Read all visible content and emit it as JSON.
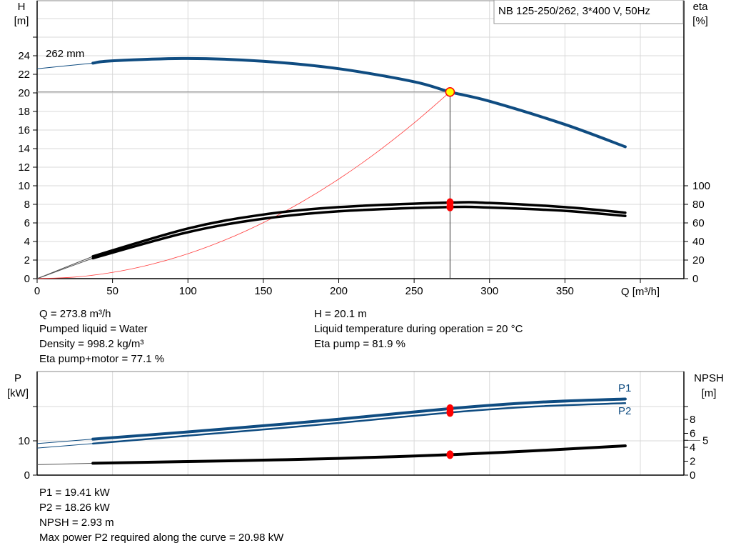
{
  "colors": {
    "pump_curve": "#0f4c81",
    "efficiency": "#000000",
    "system_curve": "#ff3b3b",
    "operating_point_fill": "#ffff00",
    "operating_point_stroke": "#ff0000",
    "marker": "#ff0000",
    "grid": "#d9d9d9"
  },
  "legend_box": "NB 125-250/262, 3*400 V, 50Hz",
  "chart_data": [
    {
      "type": "line",
      "title": "",
      "xlabel": "Q [m³/h]",
      "ylabel_left": [
        "H",
        "[m]"
      ],
      "ylabel_right": [
        "eta",
        "[%]"
      ],
      "xlim": [
        0,
        400
      ],
      "ylim_left": [
        0,
        30
      ],
      "ylim_right": [
        0,
        100
      ],
      "grid": true,
      "x_ticks": [
        "0",
        "50",
        "100",
        "150",
        "200",
        "250",
        "300",
        "350"
      ],
      "y_ticks_left": [
        "0",
        "2",
        "4",
        "6",
        "8",
        "10",
        "12",
        "14",
        "16",
        "18",
        "20",
        "22",
        "24"
      ],
      "y_ticks_right": [
        "0",
        "20",
        "40",
        "60",
        "80",
        "100"
      ],
      "curve_label": "262 mm",
      "series": [
        {
          "id": "head",
          "axis": "left",
          "x": [
            0,
            37,
            50,
            100,
            150,
            200,
            250,
            273.8,
            300,
            350,
            390
          ],
          "y": [
            22.6,
            23.2,
            23.45,
            23.7,
            23.4,
            22.6,
            21.2,
            20.1,
            19.1,
            16.6,
            14.2
          ]
        },
        {
          "id": "eta_pump",
          "axis": "right",
          "x": [
            0,
            37,
            100,
            150,
            200,
            273.8,
            300,
            350,
            390
          ],
          "y": [
            0,
            24,
            54,
            69,
            77,
            81.9,
            81.5,
            77,
            71
          ]
        },
        {
          "id": "eta_pump_motor",
          "axis": "right",
          "x": [
            0,
            37,
            100,
            150,
            200,
            273.8,
            300,
            350,
            390
          ],
          "y": [
            0,
            22,
            50,
            64.5,
            72.5,
            77.1,
            76.5,
            73,
            67.5
          ]
        },
        {
          "id": "system_curve",
          "axis": "left",
          "x": [
            0,
            25,
            50,
            75,
            100,
            125,
            150,
            175,
            200,
            225,
            250,
            273.8
          ],
          "y": [
            0,
            0.17,
            0.67,
            1.51,
            2.68,
            4.19,
            6.03,
            8.21,
            10.72,
            13.57,
            16.76,
            20.1
          ]
        }
      ],
      "operating_point": {
        "Q": 273.8,
        "H": 20.1,
        "eta_pump": 81.9,
        "eta_pump_motor": 77.1
      }
    },
    {
      "type": "line",
      "title": "",
      "ylabel_left": [
        "P",
        "[kW]"
      ],
      "ylabel_right": [
        "NPSH",
        "[m]"
      ],
      "xlim": [
        0,
        400
      ],
      "ylim_left": [
        0,
        30
      ],
      "ylim_right": [
        0,
        15
      ],
      "grid": true,
      "y_ticks_left": [
        "0",
        "10"
      ],
      "y_ticks_right": [
        "0",
        "2",
        "4",
        "5",
        "6",
        "8"
      ],
      "series": [
        {
          "id": "P1",
          "name": "P1",
          "axis": "left",
          "x": [
            0,
            37,
            100,
            150,
            200,
            273.8,
            330,
            390
          ],
          "y": [
            9.2,
            10.5,
            12.6,
            14.4,
            16.3,
            19.41,
            21.2,
            22.2
          ]
        },
        {
          "id": "P2",
          "name": "P2",
          "axis": "left",
          "x": [
            0,
            37,
            100,
            150,
            200,
            273.8,
            330,
            390
          ],
          "y": [
            7.9,
            9.2,
            11.5,
            13.3,
            15.2,
            18.26,
            20.0,
            20.98
          ]
        },
        {
          "id": "NPSH",
          "axis": "right",
          "x": [
            0,
            37,
            100,
            150,
            200,
            273.8,
            330,
            390
          ],
          "y": [
            1.5,
            1.7,
            1.95,
            2.15,
            2.4,
            2.93,
            3.5,
            4.2
          ]
        }
      ],
      "operating_point": {
        "Q": 273.8,
        "P1": 19.41,
        "P2": 18.26,
        "NPSH": 2.93
      }
    }
  ],
  "info_top": {
    "left": [
      "Q = 273.8 m³/h",
      "Pumped liquid = Water",
      "Density = 998.2 kg/m³",
      "Eta pump+motor = 77.1 %"
    ],
    "right": [
      "H = 20.1 m",
      "Liquid temperature during operation = 20 °C",
      "Eta pump = 81.9 %"
    ]
  },
  "info_bottom": [
    "P1 = 19.41 kW",
    "P2 = 18.26 kW",
    "NPSH = 2.93 m",
    "Max power P2 required along the curve = 20.98 kW"
  ]
}
